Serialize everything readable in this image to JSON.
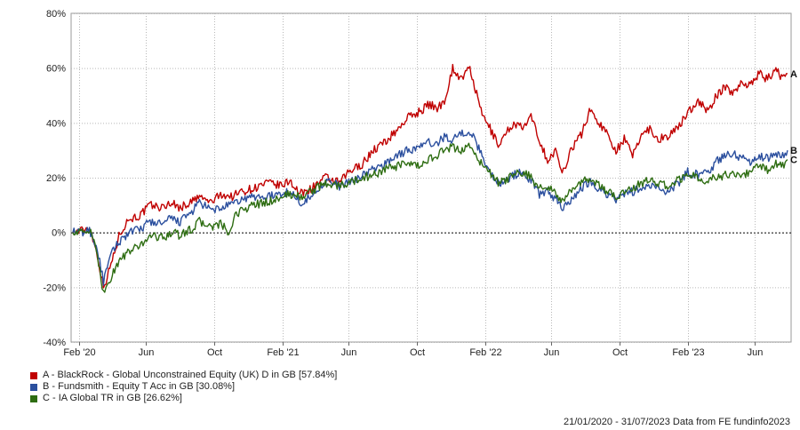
{
  "chart_data": {
    "type": "line",
    "ylim": [
      -40,
      80
    ],
    "y_ticks": [
      -40,
      -20,
      0,
      20,
      40,
      60,
      80
    ],
    "y_tick_labels": [
      "-40%",
      "-20%",
      "0%",
      "20%",
      "40%",
      "60%",
      "80%"
    ],
    "x_range": [
      "2020-01-21",
      "2023-07-31"
    ],
    "x_ticks": [
      {
        "date": "2020-02-01",
        "label": "Feb '20"
      },
      {
        "date": "2020-06-01",
        "label": "Jun"
      },
      {
        "date": "2020-10-01",
        "label": "Oct"
      },
      {
        "date": "2021-02-01",
        "label": "Feb '21"
      },
      {
        "date": "2021-06-01",
        "label": "Jun"
      },
      {
        "date": "2021-10-01",
        "label": "Oct"
      },
      {
        "date": "2022-02-01",
        "label": "Feb '22"
      },
      {
        "date": "2022-06-01",
        "label": "Jun"
      },
      {
        "date": "2022-10-01",
        "label": "Oct"
      },
      {
        "date": "2023-02-01",
        "label": "Feb '23"
      },
      {
        "date": "2023-06-01",
        "label": "Jun"
      }
    ],
    "grid": true,
    "series": [
      {
        "name": "A - BlackRock - Global Unconstrained Equity (UK) D in GB [57.84%]",
        "end_label": "A",
        "color": "#c00000",
        "points": [
          [
            "2020-01-21",
            0
          ],
          [
            "2020-02-10",
            1
          ],
          [
            "2020-02-20",
            2
          ],
          [
            "2020-03-05",
            -8
          ],
          [
            "2020-03-16",
            -20
          ],
          [
            "2020-03-23",
            -16
          ],
          [
            "2020-04-01",
            -10
          ],
          [
            "2020-04-15",
            0
          ],
          [
            "2020-05-01",
            5
          ],
          [
            "2020-05-20",
            6
          ],
          [
            "2020-06-08",
            10
          ],
          [
            "2020-07-01",
            9
          ],
          [
            "2020-07-15",
            11
          ],
          [
            "2020-08-01",
            9
          ],
          [
            "2020-08-20",
            11
          ],
          [
            "2020-09-05",
            13
          ],
          [
            "2020-09-25",
            11
          ],
          [
            "2020-10-15",
            14
          ],
          [
            "2020-11-01",
            13
          ],
          [
            "2020-11-20",
            15
          ],
          [
            "2020-12-10",
            16
          ],
          [
            "2021-01-05",
            18
          ],
          [
            "2021-02-01",
            17
          ],
          [
            "2021-02-15",
            19
          ],
          [
            "2021-03-05",
            14
          ],
          [
            "2021-03-25",
            16
          ],
          [
            "2021-04-20",
            20
          ],
          [
            "2021-05-15",
            18
          ],
          [
            "2021-06-01",
            22
          ],
          [
            "2021-06-25",
            25
          ],
          [
            "2021-07-15",
            30
          ],
          [
            "2021-08-05",
            33
          ],
          [
            "2021-08-25",
            37
          ],
          [
            "2021-09-15",
            42
          ],
          [
            "2021-10-05",
            44
          ],
          [
            "2021-10-25",
            47
          ],
          [
            "2021-11-05",
            45
          ],
          [
            "2021-11-20",
            48
          ],
          [
            "2021-12-05",
            60
          ],
          [
            "2021-12-20",
            56
          ],
          [
            "2022-01-05",
            60
          ],
          [
            "2022-01-25",
            44
          ],
          [
            "2022-02-10",
            38
          ],
          [
            "2022-02-25",
            32
          ],
          [
            "2022-03-10",
            36
          ],
          [
            "2022-03-25",
            40
          ],
          [
            "2022-04-10",
            38
          ],
          [
            "2022-04-25",
            42
          ],
          [
            "2022-05-10",
            34
          ],
          [
            "2022-05-25",
            26
          ],
          [
            "2022-06-10",
            30
          ],
          [
            "2022-06-20",
            21
          ],
          [
            "2022-07-05",
            30
          ],
          [
            "2022-07-25",
            36
          ],
          [
            "2022-08-10",
            45
          ],
          [
            "2022-08-25",
            40
          ],
          [
            "2022-09-10",
            36
          ],
          [
            "2022-09-25",
            30
          ],
          [
            "2022-10-10",
            34
          ],
          [
            "2022-10-25",
            28
          ],
          [
            "2022-11-10",
            36
          ],
          [
            "2022-11-25",
            38
          ],
          [
            "2022-12-10",
            34
          ],
          [
            "2022-12-25",
            35
          ],
          [
            "2023-01-15",
            38
          ],
          [
            "2023-02-01",
            44
          ],
          [
            "2023-02-20",
            48
          ],
          [
            "2023-03-10",
            44
          ],
          [
            "2023-03-25",
            50
          ],
          [
            "2023-04-10",
            53
          ],
          [
            "2023-04-25",
            51
          ],
          [
            "2023-05-10",
            55
          ],
          [
            "2023-05-25",
            54
          ],
          [
            "2023-06-10",
            58
          ],
          [
            "2023-06-25",
            56
          ],
          [
            "2023-07-10",
            59
          ],
          [
            "2023-07-20",
            57
          ],
          [
            "2023-07-31",
            58
          ]
        ]
      },
      {
        "name": "B - Fundsmith - Equity T Acc in GB [30.08%]",
        "end_label": "B",
        "color": "#2b4f9e",
        "points": [
          [
            "2020-01-21",
            0
          ],
          [
            "2020-02-10",
            0
          ],
          [
            "2020-02-20",
            1
          ],
          [
            "2020-03-05",
            -6
          ],
          [
            "2020-03-16",
            -18
          ],
          [
            "2020-03-23",
            -13
          ],
          [
            "2020-04-01",
            -7
          ],
          [
            "2020-04-15",
            -3
          ],
          [
            "2020-05-01",
            0
          ],
          [
            "2020-05-20",
            1
          ],
          [
            "2020-06-08",
            4
          ],
          [
            "2020-07-01",
            3
          ],
          [
            "2020-07-15",
            5
          ],
          [
            "2020-08-01",
            4
          ],
          [
            "2020-08-20",
            7
          ],
          [
            "2020-09-05",
            11
          ],
          [
            "2020-09-25",
            8
          ],
          [
            "2020-10-15",
            9
          ],
          [
            "2020-11-01",
            10
          ],
          [
            "2020-11-20",
            12
          ],
          [
            "2020-12-10",
            13
          ],
          [
            "2021-01-05",
            13
          ],
          [
            "2021-02-01",
            14
          ],
          [
            "2021-02-15",
            15
          ],
          [
            "2021-03-05",
            11
          ],
          [
            "2021-03-25",
            13
          ],
          [
            "2021-04-20",
            19
          ],
          [
            "2021-05-15",
            17
          ],
          [
            "2021-06-01",
            18
          ],
          [
            "2021-06-25",
            21
          ],
          [
            "2021-07-15",
            23
          ],
          [
            "2021-08-05",
            25
          ],
          [
            "2021-08-25",
            28
          ],
          [
            "2021-09-15",
            30
          ],
          [
            "2021-10-05",
            31
          ],
          [
            "2021-10-25",
            33
          ],
          [
            "2021-11-05",
            32
          ],
          [
            "2021-11-20",
            35
          ],
          [
            "2021-12-05",
            34
          ],
          [
            "2021-12-20",
            36
          ],
          [
            "2022-01-05",
            37
          ],
          [
            "2022-01-25",
            29
          ],
          [
            "2022-02-10",
            22
          ],
          [
            "2022-02-25",
            18
          ],
          [
            "2022-03-10",
            19
          ],
          [
            "2022-03-25",
            21
          ],
          [
            "2022-04-10",
            22
          ],
          [
            "2022-04-25",
            19
          ],
          [
            "2022-05-10",
            14
          ],
          [
            "2022-05-25",
            15
          ],
          [
            "2022-06-10",
            12
          ],
          [
            "2022-06-20",
            9
          ],
          [
            "2022-07-05",
            12
          ],
          [
            "2022-07-25",
            16
          ],
          [
            "2022-08-10",
            19
          ],
          [
            "2022-08-25",
            16
          ],
          [
            "2022-09-10",
            14
          ],
          [
            "2022-09-25",
            12
          ],
          [
            "2022-10-10",
            14
          ],
          [
            "2022-10-25",
            15
          ],
          [
            "2022-11-10",
            16
          ],
          [
            "2022-11-25",
            17
          ],
          [
            "2022-12-10",
            16
          ],
          [
            "2022-12-25",
            15
          ],
          [
            "2023-01-15",
            18
          ],
          [
            "2023-02-01",
            22
          ],
          [
            "2023-02-20",
            21
          ],
          [
            "2023-03-10",
            22
          ],
          [
            "2023-03-25",
            26
          ],
          [
            "2023-04-10",
            28
          ],
          [
            "2023-04-25",
            29
          ],
          [
            "2023-05-10",
            27
          ],
          [
            "2023-05-25",
            26
          ],
          [
            "2023-06-10",
            28
          ],
          [
            "2023-06-25",
            27
          ],
          [
            "2023-07-10",
            29
          ],
          [
            "2023-07-20",
            28
          ],
          [
            "2023-07-31",
            30
          ]
        ]
      },
      {
        "name": "C - IA Global TR in GB [26.62%]",
        "end_label": "C",
        "color": "#2e6d12",
        "points": [
          [
            "2020-01-21",
            0
          ],
          [
            "2020-02-10",
            0
          ],
          [
            "2020-02-20",
            1
          ],
          [
            "2020-03-05",
            -8
          ],
          [
            "2020-03-16",
            -22
          ],
          [
            "2020-03-23",
            -20
          ],
          [
            "2020-04-01",
            -15
          ],
          [
            "2020-04-15",
            -10
          ],
          [
            "2020-05-01",
            -7
          ],
          [
            "2020-05-20",
            -5
          ],
          [
            "2020-06-08",
            -1
          ],
          [
            "2020-07-01",
            -2
          ],
          [
            "2020-07-15",
            0
          ],
          [
            "2020-08-01",
            -1
          ],
          [
            "2020-08-20",
            1
          ],
          [
            "2020-09-05",
            4
          ],
          [
            "2020-09-25",
            2
          ],
          [
            "2020-10-15",
            3
          ],
          [
            "2020-10-30",
            -1
          ],
          [
            "2020-11-10",
            7
          ],
          [
            "2020-12-10",
            10
          ],
          [
            "2021-01-05",
            11
          ],
          [
            "2021-02-01",
            13
          ],
          [
            "2021-02-15",
            14
          ],
          [
            "2021-03-05",
            13
          ],
          [
            "2021-03-25",
            15
          ],
          [
            "2021-04-20",
            18
          ],
          [
            "2021-05-15",
            17
          ],
          [
            "2021-06-01",
            18
          ],
          [
            "2021-06-25",
            20
          ],
          [
            "2021-07-15",
            21
          ],
          [
            "2021-08-05",
            23
          ],
          [
            "2021-08-25",
            24
          ],
          [
            "2021-09-15",
            25
          ],
          [
            "2021-10-05",
            24
          ],
          [
            "2021-10-25",
            27
          ],
          [
            "2021-11-05",
            28
          ],
          [
            "2021-11-20",
            30
          ],
          [
            "2021-12-05",
            31
          ],
          [
            "2021-12-20",
            30
          ],
          [
            "2022-01-05",
            32
          ],
          [
            "2022-01-25",
            25
          ],
          [
            "2022-02-10",
            22
          ],
          [
            "2022-02-25",
            18
          ],
          [
            "2022-03-10",
            19
          ],
          [
            "2022-03-25",
            21
          ],
          [
            "2022-04-10",
            22
          ],
          [
            "2022-04-25",
            20
          ],
          [
            "2022-05-10",
            16
          ],
          [
            "2022-05-25",
            17
          ],
          [
            "2022-06-10",
            14
          ],
          [
            "2022-06-20",
            11
          ],
          [
            "2022-07-05",
            15
          ],
          [
            "2022-07-25",
            18
          ],
          [
            "2022-08-10",
            20
          ],
          [
            "2022-08-25",
            17
          ],
          [
            "2022-09-10",
            15
          ],
          [
            "2022-09-25",
            13
          ],
          [
            "2022-10-10",
            15
          ],
          [
            "2022-10-25",
            16
          ],
          [
            "2022-11-10",
            18
          ],
          [
            "2022-11-25",
            19
          ],
          [
            "2022-12-10",
            18
          ],
          [
            "2022-12-25",
            17
          ],
          [
            "2023-01-15",
            19
          ],
          [
            "2023-02-01",
            21
          ],
          [
            "2023-02-20",
            20
          ],
          [
            "2023-03-10",
            19
          ],
          [
            "2023-03-25",
            20
          ],
          [
            "2023-04-10",
            21
          ],
          [
            "2023-04-25",
            22
          ],
          [
            "2023-05-10",
            21
          ],
          [
            "2023-05-25",
            22
          ],
          [
            "2023-06-10",
            24
          ],
          [
            "2023-06-25",
            23
          ],
          [
            "2023-07-10",
            25
          ],
          [
            "2023-07-20",
            24
          ],
          [
            "2023-07-31",
            26.6
          ]
        ]
      }
    ]
  },
  "footer": {
    "text": "21/01/2020 - 31/07/2023 Data from FE fundinfo2023"
  }
}
